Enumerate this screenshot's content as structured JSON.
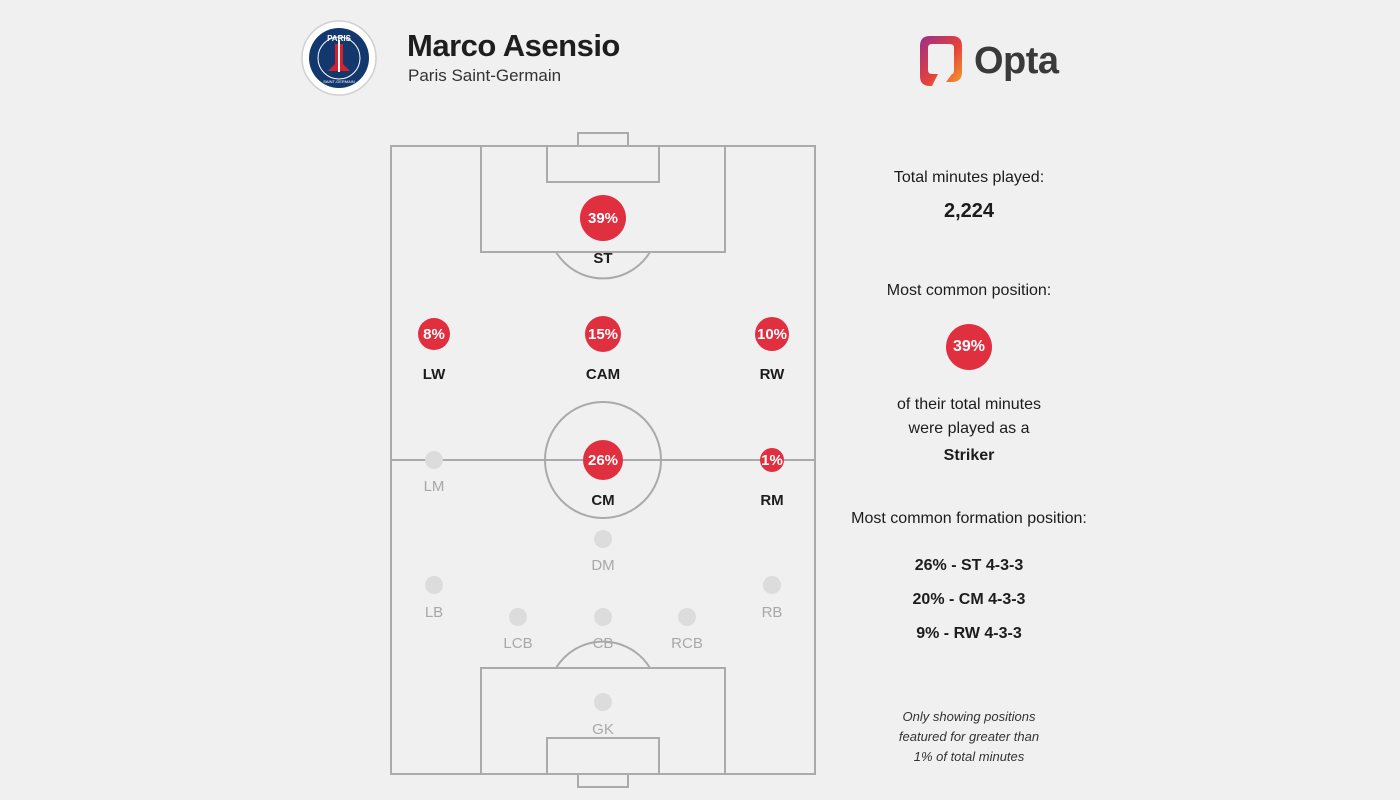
{
  "header": {
    "player_name": "Marco Asensio",
    "team_name": "Paris Saint-Germain",
    "brand": "Opta",
    "crest_text_top": "PARIS",
    "crest_text_bottom": "SAINT-GERMAIN"
  },
  "colors": {
    "accent": "#e03040",
    "pitch_line": "#aaaaaa",
    "inactive_dot": "#dcdcdc",
    "inactive_label": "#a8a8a8",
    "crest_blue": "#13386e",
    "crest_red": "#d8202c",
    "opta_gradient": [
      "#9b2e8b",
      "#e5413b",
      "#f4a12b"
    ]
  },
  "positions": [
    {
      "code": "ST",
      "value": 39,
      "active": true
    },
    {
      "code": "LW",
      "value": 8,
      "active": true
    },
    {
      "code": "CAM",
      "value": 15,
      "active": true
    },
    {
      "code": "RW",
      "value": 10,
      "active": true
    },
    {
      "code": "LM",
      "value": null,
      "active": false
    },
    {
      "code": "CM",
      "value": 26,
      "active": true
    },
    {
      "code": "RM",
      "value": 1,
      "active": true
    },
    {
      "code": "DM",
      "value": null,
      "active": false
    },
    {
      "code": "LB",
      "value": null,
      "active": false
    },
    {
      "code": "RB",
      "value": null,
      "active": false
    },
    {
      "code": "LCB",
      "value": null,
      "active": false
    },
    {
      "code": "CB",
      "value": null,
      "active": false
    },
    {
      "code": "RCB",
      "value": null,
      "active": false
    },
    {
      "code": "GK",
      "value": null,
      "active": false
    }
  ],
  "stats": {
    "total_minutes_label": "Total minutes played:",
    "total_minutes_value": "2,224",
    "common_position_label": "Most common position:",
    "common_position_pct": "39%",
    "common_position_desc_1": "of their total minutes",
    "common_position_desc_2": "were played as a",
    "common_position_name": "Striker",
    "formation_label": "Most common formation position:",
    "formations": [
      "26% - ST 4-3-3",
      "20% - CM 4-3-3",
      "9% - RW 4-3-3"
    ]
  },
  "footnote": [
    "Only showing positions",
    "featured for greater than",
    "1% of total minutes"
  ]
}
